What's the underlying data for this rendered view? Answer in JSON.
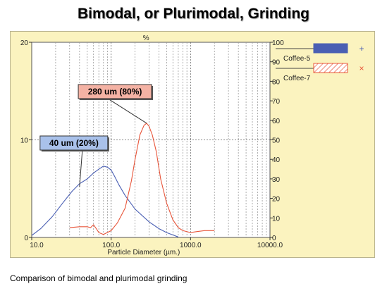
{
  "title": "Bimodal, or Plurimodal, Grinding",
  "caption": "Comparison of bimodal and plurimodal grinding",
  "chart_data": {
    "type": "line",
    "title": "Bimodal, or Plurimodal, Grinding",
    "xlabel": "Particle Diameter (µm.)",
    "y_left_unit": "%",
    "x_scale": "log",
    "xlim": [
      10,
      10000
    ],
    "x_ticks": [
      10,
      100,
      1000,
      10000
    ],
    "x_tick_labels": [
      "10.0",
      "100.0",
      "1000.0",
      "10000.0"
    ],
    "ylim_left": [
      0,
      20
    ],
    "y_left_ticks": [
      0,
      10,
      20
    ],
    "y_left_tick_labels": [
      "0",
      "10",
      "20"
    ],
    "ylim_right": [
      0,
      100
    ],
    "y_right_ticks": [
      0,
      10,
      20,
      30,
      40,
      50,
      60,
      70,
      80,
      90,
      100
    ],
    "y_right_tick_labels": [
      "0",
      "10",
      "20",
      "30",
      "40",
      "50",
      "60",
      "70",
      "80",
      "90",
      "100"
    ],
    "grid": true,
    "legend_position": "right",
    "series": [
      {
        "name": "Coffee-5",
        "color": "#4a5fb3",
        "legend_symbol": "+",
        "legend_swatch": "solid",
        "x": [
          10,
          13,
          18,
          25,
          32,
          40,
          50,
          60,
          70,
          80,
          90,
          100,
          110,
          125,
          150,
          200,
          300,
          400,
          500,
          600,
          700
        ],
        "y": [
          0.2,
          0.9,
          2.1,
          3.6,
          4.7,
          5.5,
          6.0,
          6.6,
          7.0,
          7.3,
          7.2,
          6.9,
          6.3,
          5.4,
          4.3,
          2.9,
          1.6,
          0.9,
          0.5,
          0.25,
          0.05
        ]
      },
      {
        "name": "Coffee-7",
        "color": "#e8553a",
        "legend_symbol": "×",
        "legend_swatch": "hatched",
        "x": [
          30,
          40,
          50,
          55,
          60,
          65,
          70,
          80,
          100,
          120,
          150,
          180,
          200,
          230,
          260,
          280,
          300,
          330,
          370,
          420,
          500,
          600,
          700,
          800,
          1000,
          1200,
          1500,
          2000
        ],
        "y": [
          1.0,
          1.1,
          1.1,
          1.0,
          1.3,
          0.9,
          0.5,
          0.3,
          0.7,
          1.5,
          3.0,
          5.8,
          8.0,
          10.5,
          11.5,
          11.7,
          11.4,
          10.5,
          8.8,
          6.0,
          3.5,
          1.8,
          1.0,
          0.7,
          0.5,
          0.6,
          0.7,
          0.7
        ]
      }
    ],
    "annotations": [
      {
        "text": "40 um (20%)",
        "fill": "#a9c1ea",
        "x": 40,
        "y": 5.2
      },
      {
        "text": "280 um (80%)",
        "fill": "#f4b2a4",
        "x": 280,
        "y": 11.7
      }
    ]
  }
}
